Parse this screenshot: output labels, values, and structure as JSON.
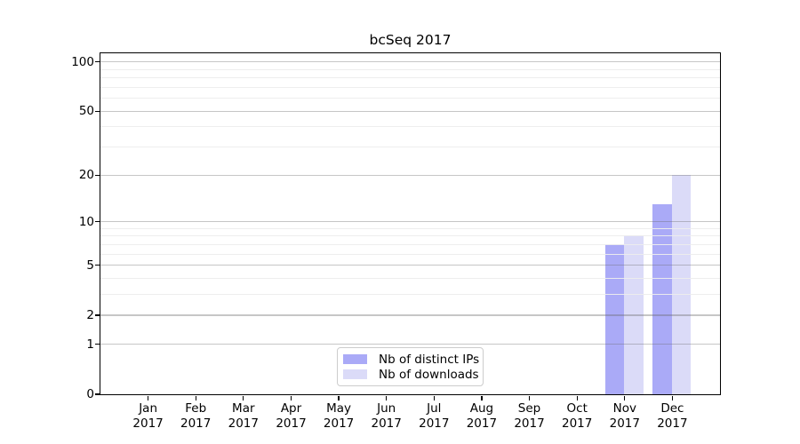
{
  "chart_data": {
    "type": "bar",
    "title": "bcSeq 2017",
    "categories": [
      "Jan",
      "Feb",
      "Mar",
      "Apr",
      "May",
      "Jun",
      "Jul",
      "Aug",
      "Sep",
      "Oct",
      "Nov",
      "Dec"
    ],
    "category_year": "2017",
    "series": [
      {
        "name": "Nb of distinct IPs",
        "color": "#aaaaf7",
        "values": [
          0,
          0,
          0,
          0,
          0,
          0,
          0,
          0,
          0,
          0,
          7,
          13
        ]
      },
      {
        "name": "Nb of downloads",
        "color": "#dbdbf8",
        "values": [
          0,
          0,
          0,
          0,
          0,
          0,
          0,
          0,
          0,
          0,
          8,
          20
        ]
      }
    ],
    "xlabel": "",
    "ylabel": "",
    "y_scale": "log1p",
    "y_axis": {
      "major_ticks": [
        0,
        1,
        2,
        5,
        10,
        20,
        50,
        100
      ],
      "minor_gridlines": [
        3,
        4,
        6,
        7,
        8,
        9,
        30,
        40,
        60,
        70,
        80,
        90
      ],
      "max": 113
    },
    "grid": true,
    "legend_position": "lower center",
    "colors": {
      "background": "#ffffff",
      "spine": "#000000",
      "grid_major": "#c8c8c8",
      "grid_minor": "#ececec",
      "legend_border": "#cccccc"
    }
  }
}
